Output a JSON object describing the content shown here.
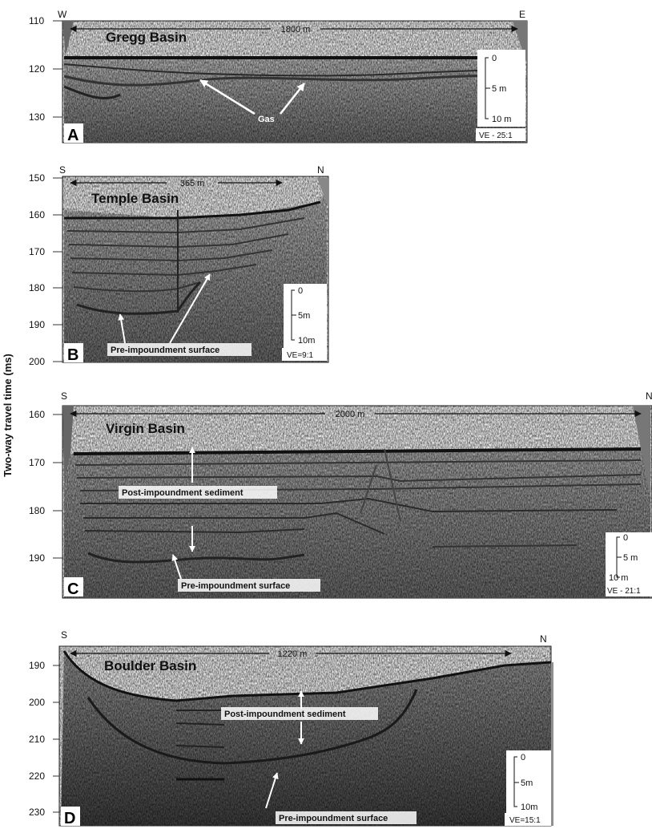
{
  "y_axis_label": "Two-way travel time (ms)",
  "panels": [
    {
      "letter": "A",
      "left_dir": "W",
      "right_dir": "E",
      "title": "Gregg Basin",
      "distance": "1800 m",
      "ticks": [
        "110",
        "120",
        "130"
      ],
      "annotations": [
        "Gas"
      ],
      "scale": [
        "0",
        "5 m",
        "10 m"
      ],
      "ve": "VE - 25:1"
    },
    {
      "letter": "B",
      "left_dir": "S",
      "right_dir": "N",
      "title": "Temple Basin",
      "distance": "365 m",
      "ticks": [
        "150",
        "160",
        "170",
        "180",
        "190",
        "200"
      ],
      "annotations": [
        "Pre-impoundment surface"
      ],
      "scale": [
        "0",
        "5m",
        "10m"
      ],
      "ve": "VE=9:1"
    },
    {
      "letter": "C",
      "left_dir": "S",
      "right_dir": "N",
      "title": "Virgin Basin",
      "distance": "2000 m",
      "ticks": [
        "160",
        "170",
        "180",
        "190"
      ],
      "annotations": [
        "Post-impoundment sediment",
        "Pre-impoundment surface"
      ],
      "scale": [
        "0",
        "5 m",
        "10 m"
      ],
      "ve": "VE - 21:1"
    },
    {
      "letter": "D",
      "left_dir": "S",
      "right_dir": "N",
      "title": "Boulder Basin",
      "distance": "1220 m",
      "ticks": [
        "190",
        "200",
        "210",
        "220",
        "230"
      ],
      "annotations": [
        "Post-impoundment sediment",
        "Pre-impoundment surface"
      ],
      "scale": [
        "0",
        "5m",
        "10m"
      ],
      "ve": "VE=15:1"
    }
  ]
}
